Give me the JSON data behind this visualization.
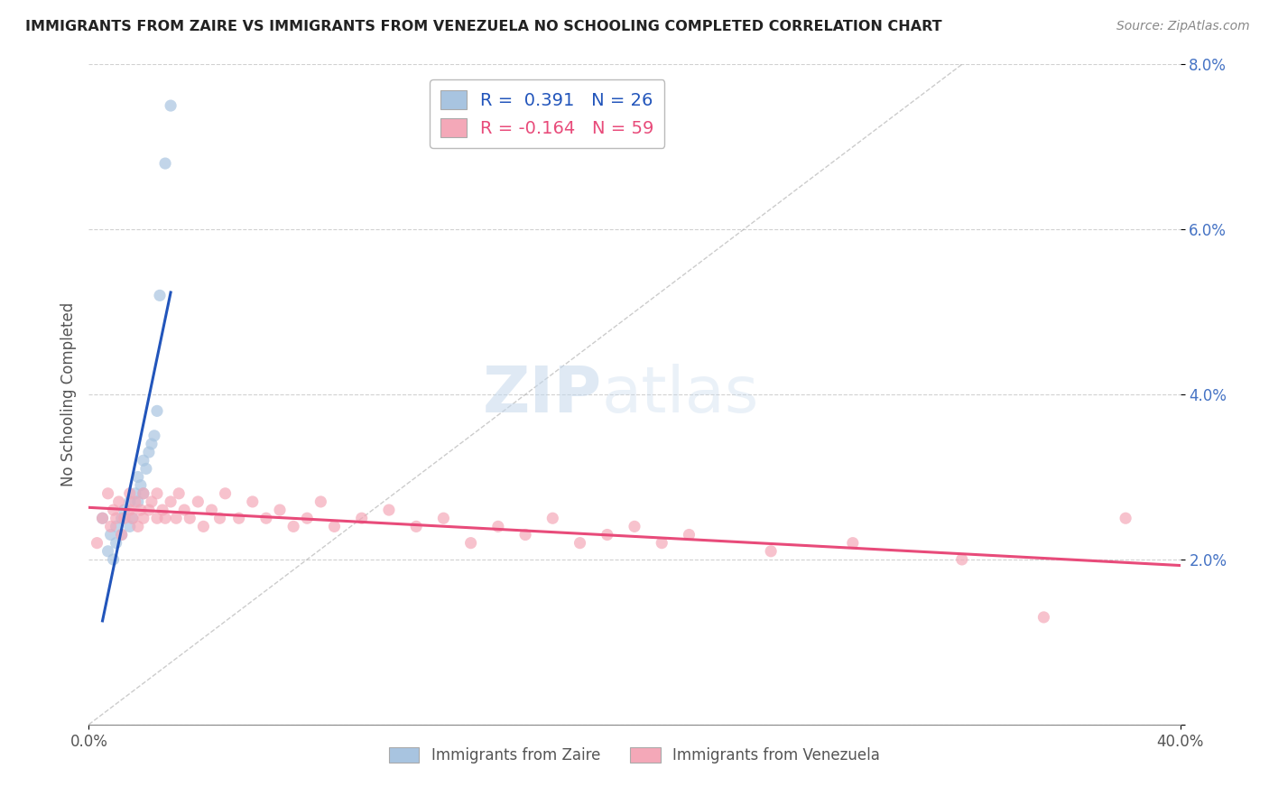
{
  "title": "IMMIGRANTS FROM ZAIRE VS IMMIGRANTS FROM VENEZUELA NO SCHOOLING COMPLETED CORRELATION CHART",
  "source": "Source: ZipAtlas.com",
  "ylabel": "No Schooling Completed",
  "xlim": [
    0.0,
    0.4
  ],
  "ylim": [
    0.0,
    0.08
  ],
  "xticks": [
    0.0,
    0.4
  ],
  "xtick_labels": [
    "0.0%",
    "40.0%"
  ],
  "yticks": [
    0.0,
    0.02,
    0.04,
    0.06,
    0.08
  ],
  "ytick_labels": [
    "",
    "2.0%",
    "4.0%",
    "6.0%",
    "8.0%"
  ],
  "zaire_R": 0.391,
  "zaire_N": 26,
  "venezuela_R": -0.164,
  "venezuela_N": 59,
  "zaire_color": "#a8c4e0",
  "venezuela_color": "#f4a8b8",
  "zaire_line_color": "#2255bb",
  "venezuela_line_color": "#e84b7a",
  "dot_size": 90,
  "dot_alpha": 0.7,
  "background_color": "#ffffff",
  "grid_color": "#cccccc",
  "zaire_x": [
    0.005,
    0.007,
    0.008,
    0.009,
    0.01,
    0.01,
    0.012,
    0.012,
    0.013,
    0.015,
    0.015,
    0.016,
    0.017,
    0.018,
    0.018,
    0.019,
    0.02,
    0.02,
    0.021,
    0.022,
    0.023,
    0.024,
    0.025,
    0.026,
    0.028,
    0.03
  ],
  "zaire_y": [
    0.025,
    0.021,
    0.023,
    0.02,
    0.022,
    0.024,
    0.023,
    0.025,
    0.026,
    0.024,
    0.027,
    0.025,
    0.028,
    0.027,
    0.03,
    0.029,
    0.028,
    0.032,
    0.031,
    0.033,
    0.034,
    0.035,
    0.038,
    0.052,
    0.068,
    0.075
  ],
  "venezuela_x": [
    0.003,
    0.005,
    0.007,
    0.008,
    0.009,
    0.01,
    0.011,
    0.012,
    0.013,
    0.015,
    0.015,
    0.016,
    0.017,
    0.018,
    0.019,
    0.02,
    0.02,
    0.022,
    0.023,
    0.025,
    0.025,
    0.027,
    0.028,
    0.03,
    0.032,
    0.033,
    0.035,
    0.037,
    0.04,
    0.042,
    0.045,
    0.048,
    0.05,
    0.055,
    0.06,
    0.065,
    0.07,
    0.075,
    0.08,
    0.085,
    0.09,
    0.1,
    0.11,
    0.12,
    0.13,
    0.14,
    0.15,
    0.16,
    0.17,
    0.18,
    0.19,
    0.2,
    0.21,
    0.22,
    0.25,
    0.28,
    0.32,
    0.35,
    0.38
  ],
  "venezuela_y": [
    0.022,
    0.025,
    0.028,
    0.024,
    0.026,
    0.025,
    0.027,
    0.023,
    0.025,
    0.026,
    0.028,
    0.025,
    0.027,
    0.024,
    0.026,
    0.025,
    0.028,
    0.026,
    0.027,
    0.025,
    0.028,
    0.026,
    0.025,
    0.027,
    0.025,
    0.028,
    0.026,
    0.025,
    0.027,
    0.024,
    0.026,
    0.025,
    0.028,
    0.025,
    0.027,
    0.025,
    0.026,
    0.024,
    0.025,
    0.027,
    0.024,
    0.025,
    0.026,
    0.024,
    0.025,
    0.022,
    0.024,
    0.023,
    0.025,
    0.022,
    0.023,
    0.024,
    0.022,
    0.023,
    0.021,
    0.022,
    0.02,
    0.013,
    0.025
  ],
  "watermark_zip": "ZIP",
  "watermark_atlas": "atlas"
}
